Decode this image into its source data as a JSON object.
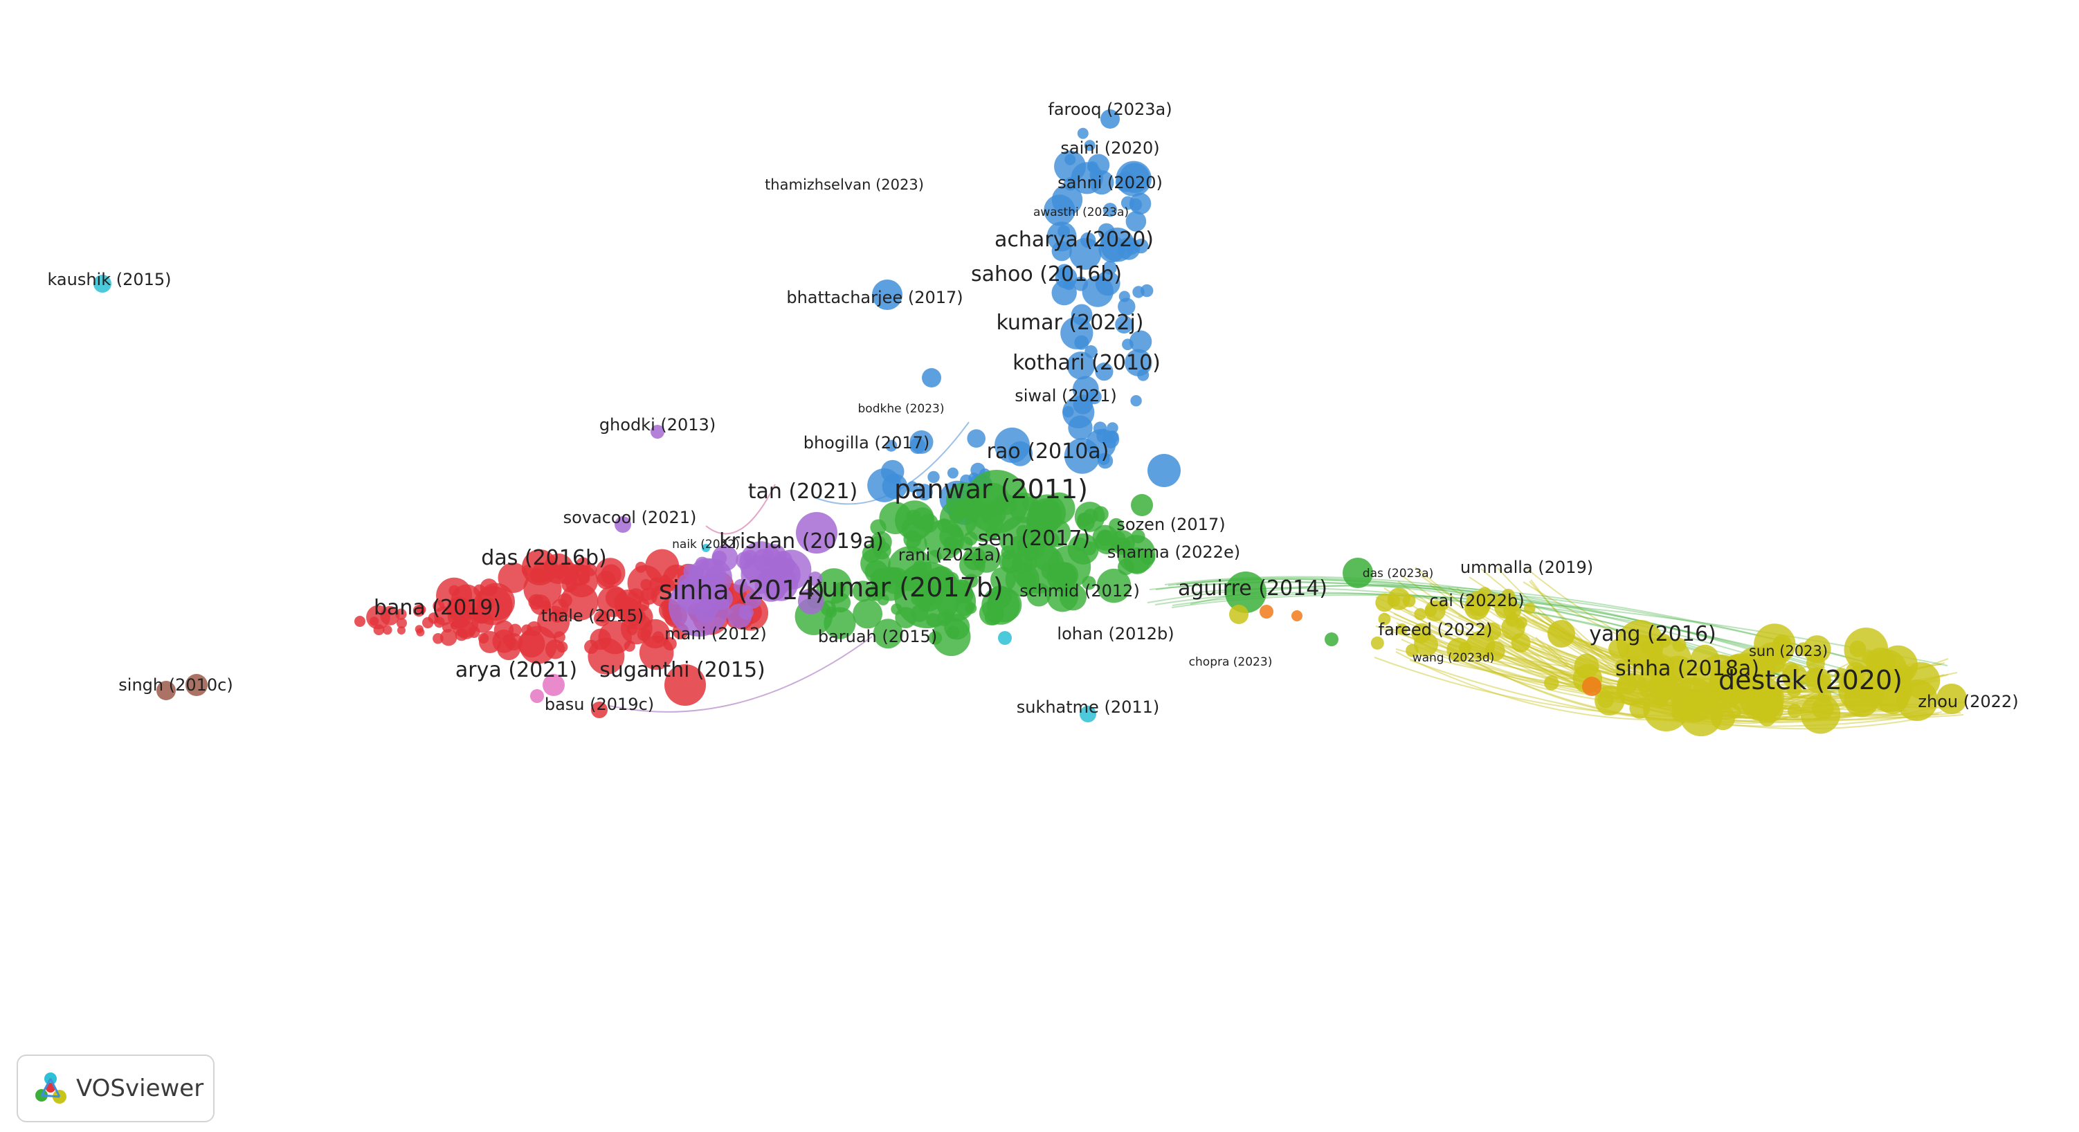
{
  "app": {
    "logo_text": "VOSviewer"
  },
  "colors": {
    "red": "#e2353b",
    "green": "#3cb03b",
    "blue": "#3f8fd9",
    "yellow": "#c9c41a",
    "purple": "#a66ad4",
    "cyan": "#2ec0d6",
    "orange": "#f07a1a",
    "brown": "#9c5a4a",
    "pink": "#e576c4"
  },
  "labels": [
    {
      "text": "farooq (2023a)",
      "cluster": "blue",
      "size": "m"
    },
    {
      "text": "saini (2020)",
      "cluster": "blue",
      "size": "m"
    },
    {
      "text": "sahni (2020)",
      "cluster": "blue",
      "size": "m"
    },
    {
      "text": "thamizhselvan (2023)",
      "cluster": "blue",
      "size": "s"
    },
    {
      "text": "awasthi (2023a)",
      "cluster": "blue",
      "size": "xs"
    },
    {
      "text": "acharya (2020)",
      "cluster": "blue",
      "size": "l"
    },
    {
      "text": "kaushik (2015)",
      "cluster": "cyan",
      "size": "m"
    },
    {
      "text": "sahoo (2016b)",
      "cluster": "blue",
      "size": "l"
    },
    {
      "text": "bhattacharjee (2017)",
      "cluster": "blue",
      "size": "m"
    },
    {
      "text": "kumar (2022j)",
      "cluster": "blue",
      "size": "l"
    },
    {
      "text": "kothari (2010)",
      "cluster": "blue",
      "size": "l"
    },
    {
      "text": "siwal (2021)",
      "cluster": "blue",
      "size": "m"
    },
    {
      "text": "bodkhe (2023)",
      "cluster": "blue",
      "size": "xs"
    },
    {
      "text": "ghodki (2013)",
      "cluster": "purple",
      "size": "m"
    },
    {
      "text": "bhogilla (2017)",
      "cluster": "blue",
      "size": "m"
    },
    {
      "text": "rao (2010a)",
      "cluster": "blue",
      "size": "l"
    },
    {
      "text": "panwar (2011)",
      "cluster": "green",
      "size": "xl"
    },
    {
      "text": "tan (2021)",
      "cluster": "red",
      "size": "l"
    },
    {
      "text": "sovacool (2021)",
      "cluster": "purple",
      "size": "m"
    },
    {
      "text": "sozen (2017)",
      "cluster": "green",
      "size": "m"
    },
    {
      "text": "naik (2022)",
      "cluster": "cyan",
      "size": "xs"
    },
    {
      "text": "krishan (2019a)",
      "cluster": "purple",
      "size": "l"
    },
    {
      "text": "sen (2017)",
      "cluster": "green",
      "size": "l"
    },
    {
      "text": "rani (2021a)",
      "cluster": "green",
      "size": "m"
    },
    {
      "text": "sharma (2022e)",
      "cluster": "blue",
      "size": "m"
    },
    {
      "text": "das (2016b)",
      "cluster": "red",
      "size": "l"
    },
    {
      "text": "das (2023a)",
      "cluster": "green",
      "size": "xs"
    },
    {
      "text": "ummalla (2019)",
      "cluster": "yellow",
      "size": "m"
    },
    {
      "text": "aguirre (2014)",
      "cluster": "green",
      "size": "l"
    },
    {
      "text": "sinha (2014)",
      "cluster": "purple",
      "size": "xl"
    },
    {
      "text": "kumar (2017b)",
      "cluster": "green",
      "size": "xl"
    },
    {
      "text": "schmid (2012)",
      "cluster": "green",
      "size": "m"
    },
    {
      "text": "cai (2022b)",
      "cluster": "yellow",
      "size": "m"
    },
    {
      "text": "bana (2019)",
      "cluster": "red",
      "size": "l"
    },
    {
      "text": "thale (2015)",
      "cluster": "red",
      "size": "m"
    },
    {
      "text": "mani (2012)",
      "cluster": "red",
      "size": "m"
    },
    {
      "text": "baruah (2015)",
      "cluster": "green",
      "size": "m"
    },
    {
      "text": "lohan (2012b)",
      "cluster": "green",
      "size": "m"
    },
    {
      "text": "fareed (2022)",
      "cluster": "yellow",
      "size": "m"
    },
    {
      "text": "yang (2016)",
      "cluster": "yellow",
      "size": "l"
    },
    {
      "text": "sun (2023)",
      "cluster": "yellow",
      "size": "s"
    },
    {
      "text": "wang (2023d)",
      "cluster": "yellow",
      "size": "xs"
    },
    {
      "text": "chopra (2023)",
      "cluster": "yellow",
      "size": "xs"
    },
    {
      "text": "arya (2021)",
      "cluster": "red",
      "size": "l"
    },
    {
      "text": "suganthi (2015)",
      "cluster": "red",
      "size": "l"
    },
    {
      "text": "sinha (2018a)",
      "cluster": "yellow",
      "size": "l"
    },
    {
      "text": "destek (2020)",
      "cluster": "yellow",
      "size": "xl"
    },
    {
      "text": "zhou (2022)",
      "cluster": "yellow",
      "size": "m"
    },
    {
      "text": "singh (2010c)",
      "cluster": "brown",
      "size": "m"
    },
    {
      "text": "basu (2019c)",
      "cluster": "red",
      "size": "m"
    },
    {
      "text": "sukhatme (2011)",
      "cluster": "cyan",
      "size": "m"
    }
  ]
}
